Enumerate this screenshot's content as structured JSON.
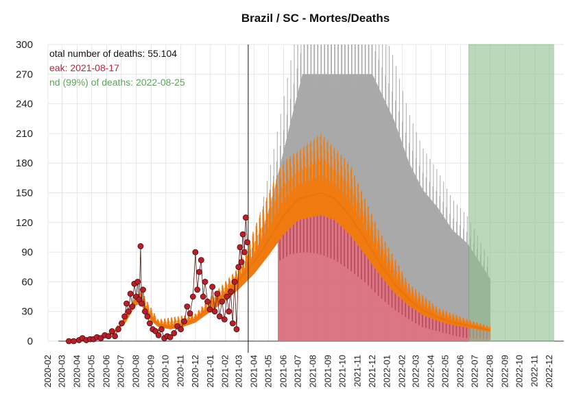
{
  "chart_data": {
    "type": "line",
    "title": "Brazil / SC - Mortes/Deaths",
    "ylim": [
      0,
      300
    ],
    "yticks": [
      0,
      30,
      60,
      90,
      120,
      150,
      180,
      210,
      240,
      270,
      300
    ],
    "xlim": [
      "2020-02-01",
      "2022-12-31"
    ],
    "xticks": [
      "2020-02",
      "2020-03",
      "2020-04",
      "2020-05",
      "2020-06",
      "2020-07",
      "2020-08",
      "2020-09",
      "2020-10",
      "2020-11",
      "2020-12",
      "2021-01",
      "2021-02",
      "2021-03",
      "2021-04",
      "2021-05",
      "2021-06",
      "2021-07",
      "2021-08",
      "2021-09",
      "2021-10",
      "2021-11",
      "2021-12",
      "2022-01",
      "2022-02",
      "2022-03",
      "2022-04",
      "2022-05",
      "2022-06",
      "2022-07",
      "2022-08",
      "2022-09",
      "2022-10",
      "2022-11",
      "2022-12"
    ],
    "grid": true,
    "annotations": [
      {
        "text": "otal number of deaths: 55.104",
        "color": "#111111"
      },
      {
        "text": "eak: 2021-08-17",
        "color": "#c0203a"
      },
      {
        "text": "nd (99%) of deaths: 2022-08-25",
        "color": "#5fa35f"
      }
    ],
    "vline": "2021-03-20",
    "end_region": {
      "start": "2022-06-18",
      "end": "2022-12-10",
      "color": "#8fbf8f"
    },
    "series": [
      {
        "kind": "observed_daily_deaths",
        "color": "#b5202c",
        "points": [
          [
            "2020-03-15",
            0
          ],
          [
            "2020-03-25",
            0
          ],
          [
            "2020-04-05",
            1
          ],
          [
            "2020-04-12",
            3
          ],
          [
            "2020-04-20",
            1
          ],
          [
            "2020-04-28",
            2
          ],
          [
            "2020-05-05",
            2
          ],
          [
            "2020-05-12",
            4
          ],
          [
            "2020-05-20",
            3
          ],
          [
            "2020-05-28",
            6
          ],
          [
            "2020-06-05",
            5
          ],
          [
            "2020-06-12",
            10
          ],
          [
            "2020-06-18",
            5
          ],
          [
            "2020-06-25",
            12
          ],
          [
            "2020-07-02",
            18
          ],
          [
            "2020-07-08",
            25
          ],
          [
            "2020-07-12",
            38
          ],
          [
            "2020-07-16",
            30
          ],
          [
            "2020-07-20",
            48
          ],
          [
            "2020-07-24",
            35
          ],
          [
            "2020-07-28",
            58
          ],
          [
            "2020-08-01",
            45
          ],
          [
            "2020-08-04",
            60
          ],
          [
            "2020-08-07",
            42
          ],
          [
            "2020-08-10",
            96
          ],
          [
            "2020-08-12",
            38
          ],
          [
            "2020-08-15",
            52
          ],
          [
            "2020-08-19",
            30
          ],
          [
            "2020-08-24",
            25
          ],
          [
            "2020-08-29",
            18
          ],
          [
            "2020-09-04",
            12
          ],
          [
            "2020-09-10",
            10
          ],
          [
            "2020-09-16",
            6
          ],
          [
            "2020-09-22",
            12
          ],
          [
            "2020-09-28",
            3
          ],
          [
            "2020-10-04",
            5
          ],
          [
            "2020-10-10",
            4
          ],
          [
            "2020-10-18",
            8
          ],
          [
            "2020-10-25",
            15
          ],
          [
            "2020-11-01",
            12
          ],
          [
            "2020-11-08",
            20
          ],
          [
            "2020-11-14",
            35
          ],
          [
            "2020-11-20",
            28
          ],
          [
            "2020-11-26",
            45
          ],
          [
            "2020-12-01",
            90
          ],
          [
            "2020-12-05",
            52
          ],
          [
            "2020-12-09",
            70
          ],
          [
            "2020-12-13",
            82
          ],
          [
            "2020-12-17",
            45
          ],
          [
            "2020-12-21",
            60
          ],
          [
            "2020-12-26",
            40
          ],
          [
            "2020-12-31",
            32
          ],
          [
            "2021-01-05",
            55
          ],
          [
            "2021-01-10",
            30
          ],
          [
            "2021-01-15",
            48
          ],
          [
            "2021-01-20",
            25
          ],
          [
            "2021-01-25",
            40
          ],
          [
            "2021-01-30",
            22
          ],
          [
            "2021-02-04",
            45
          ],
          [
            "2021-02-08",
            30
          ],
          [
            "2021-02-12",
            50
          ],
          [
            "2021-02-16",
            18
          ],
          [
            "2021-02-20",
            60
          ],
          [
            "2021-02-24",
            12
          ],
          [
            "2021-02-28",
            75
          ],
          [
            "2021-03-03",
            95
          ],
          [
            "2021-03-06",
            80
          ],
          [
            "2021-03-09",
            108
          ],
          [
            "2021-03-12",
            90
          ],
          [
            "2021-03-15",
            125
          ],
          [
            "2021-03-18",
            100
          ]
        ]
      },
      {
        "kind": "fitted_curve",
        "color": "#f07b10",
        "points": [
          [
            "2020-03-15",
            0
          ],
          [
            "2020-04-15",
            1
          ],
          [
            "2020-05-15",
            3
          ],
          [
            "2020-06-15",
            8
          ],
          [
            "2020-07-10",
            22
          ],
          [
            "2020-07-30",
            42
          ],
          [
            "2020-08-10",
            45
          ],
          [
            "2020-08-25",
            28
          ],
          [
            "2020-09-15",
            17
          ],
          [
            "2020-10-10",
            14
          ],
          [
            "2020-11-01",
            16
          ],
          [
            "2020-12-01",
            22
          ],
          [
            "2021-01-01",
            35
          ],
          [
            "2021-02-01",
            48
          ],
          [
            "2021-03-01",
            62
          ],
          [
            "2021-04-01",
            80
          ],
          [
            "2021-05-01",
            102
          ],
          [
            "2021-06-01",
            127
          ],
          [
            "2021-07-01",
            144
          ],
          [
            "2021-08-17",
            150
          ],
          [
            "2021-09-15",
            144
          ],
          [
            "2021-10-15",
            127
          ],
          [
            "2021-11-15",
            104
          ],
          [
            "2021-12-15",
            80
          ],
          [
            "2022-01-15",
            58
          ],
          [
            "2022-02-15",
            42
          ],
          [
            "2022-03-15",
            31
          ],
          [
            "2022-04-15",
            24
          ],
          [
            "2022-05-15",
            19
          ],
          [
            "2022-06-15",
            16
          ],
          [
            "2022-07-15",
            13
          ],
          [
            "2022-08-01",
            11
          ]
        ]
      },
      {
        "kind": "weekly_pattern_band",
        "color": "#f07b10",
        "points": [
          [
            "2020-06-15",
            10
          ],
          [
            "2020-08-10",
            52
          ],
          [
            "2020-09-15",
            22
          ],
          [
            "2020-12-01",
            28
          ],
          [
            "2021-03-01",
            75
          ],
          [
            "2021-05-01",
            150
          ],
          [
            "2021-06-01",
            182
          ],
          [
            "2021-08-17",
            210
          ],
          [
            "2021-10-15",
            180
          ],
          [
            "2021-12-15",
            112
          ],
          [
            "2022-02-15",
            58
          ],
          [
            "2022-04-15",
            34
          ],
          [
            "2022-06-15",
            22
          ],
          [
            "2022-08-01",
            15
          ]
        ]
      },
      {
        "kind": "uncertainty_upper",
        "color": "#b0b0b0",
        "points": [
          [
            "2021-03-20",
            80
          ],
          [
            "2021-04-15",
            115
          ],
          [
            "2021-05-15",
            175
          ],
          [
            "2021-06-15",
            245
          ],
          [
            "2021-07-10",
            300
          ],
          [
            "2021-12-01",
            300
          ],
          [
            "2022-01-15",
            248
          ],
          [
            "2022-02-15",
            200
          ],
          [
            "2022-03-15",
            170
          ],
          [
            "2022-04-15",
            150
          ],
          [
            "2022-05-15",
            125
          ],
          [
            "2022-06-15",
            110
          ],
          [
            "2022-07-15",
            85
          ],
          [
            "2022-08-01",
            70
          ]
        ]
      },
      {
        "kind": "uncertainty_lower",
        "color": "#d9707e",
        "points": [
          [
            "2021-05-20",
            80
          ],
          [
            "2021-06-15",
            88
          ],
          [
            "2021-07-15",
            90
          ],
          [
            "2021-08-15",
            88
          ],
          [
            "2021-09-15",
            82
          ],
          [
            "2021-10-15",
            72
          ],
          [
            "2021-11-15",
            60
          ],
          [
            "2021-12-15",
            45
          ],
          [
            "2022-01-15",
            32
          ],
          [
            "2022-02-15",
            22
          ],
          [
            "2022-03-15",
            14
          ],
          [
            "2022-04-15",
            10
          ],
          [
            "2022-05-15",
            6
          ],
          [
            "2022-06-01",
            4
          ],
          [
            "2022-06-15",
            3
          ],
          [
            "2022-08-01",
            2
          ]
        ]
      }
    ]
  }
}
